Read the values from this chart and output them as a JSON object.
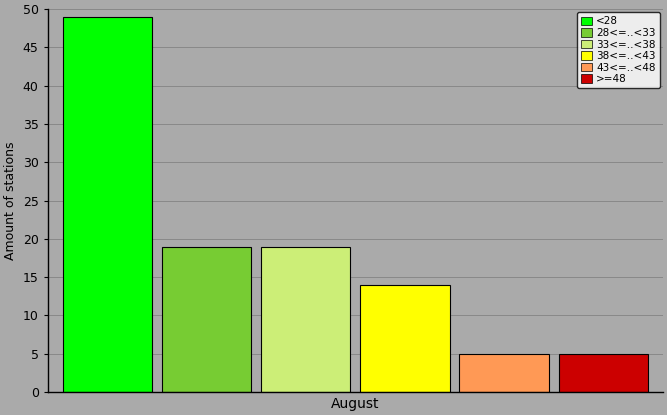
{
  "categories": [
    "<28",
    "28<=..<33",
    "33<=..<38",
    "38<=..<43",
    "43<=..<48",
    ">=48"
  ],
  "values": [
    49,
    19,
    19,
    14,
    5,
    5
  ],
  "colors": [
    "#00ff00",
    "#77cc33",
    "#ccee77",
    "#ffff00",
    "#ff9955",
    "#cc0000"
  ],
  "xlabel": "August",
  "ylabel": "Amount of stations",
  "ylim": [
    0,
    50
  ],
  "yticks": [
    0,
    5,
    10,
    15,
    20,
    25,
    30,
    35,
    40,
    45,
    50
  ],
  "background_color": "#aaaaaa",
  "legend_labels": [
    "<28",
    "28<=..<33",
    "33<=..<38",
    "38<=..<43",
    "43<=..<48",
    ">=48"
  ],
  "legend_colors": [
    "#00ff00",
    "#77cc33",
    "#ccee77",
    "#ffff00",
    "#ff9955",
    "#cc0000"
  ]
}
